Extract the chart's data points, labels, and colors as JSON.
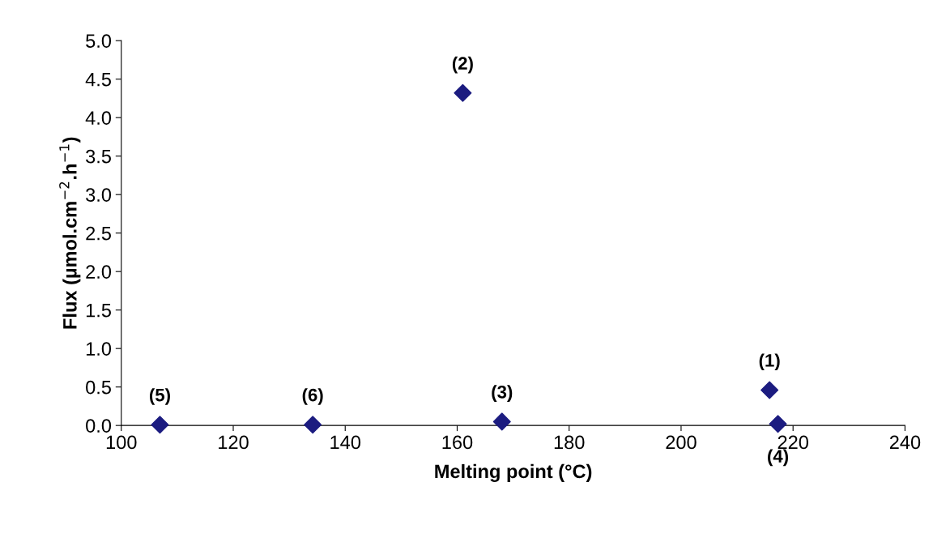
{
  "chart_data": {
    "type": "scatter",
    "xlabel": "Melting point (°C)",
    "ylabel": "Flux (µmol.cm$^{−2}$.h$^{−1}$)",
    "x": [
      215.8,
      161,
      168,
      217.3,
      106.9,
      134.2
    ],
    "values": [
      0.46,
      4.32,
      0.05,
      0.02,
      0.01,
      0.01
    ],
    "color": "#1c1c80",
    "marker": "diamond",
    "grid": false,
    "legend": false,
    "xlim": [
      100,
      240
    ],
    "xticks": [
      100,
      120,
      140,
      160,
      180,
      200,
      220,
      240
    ],
    "ylim": [
      0,
      5
    ],
    "yticks": [
      {
        "value": 0,
        "label": "0.0"
      },
      {
        "value": 0.5,
        "label": "0.5"
      },
      {
        "value": 1,
        "label": "1.0"
      },
      {
        "value": 1.5,
        "label": "1.5"
      },
      {
        "value": 2,
        "label": "2.0"
      },
      {
        "value": 2.5,
        "label": "2.5"
      },
      {
        "value": 3,
        "label": "3.0"
      },
      {
        "value": 3.5,
        "label": "3.5"
      },
      {
        "value": 4,
        "label": "4.0"
      },
      {
        "value": 4.5,
        "label": "4.5"
      },
      {
        "value": 5,
        "label": "5.0"
      }
    ],
    "annotations": [
      {
        "text": "(1)",
        "x": 215.8,
        "y": 0.46
      },
      {
        "text": "(2)",
        "x": 161,
        "y": 4.32
      },
      {
        "text": "(3)",
        "x": 168,
        "y": 0.05
      },
      {
        "text": "(4)",
        "x": 217.3,
        "y": 0.02
      },
      {
        "text": "(5)",
        "x": 106.9,
        "y": 0.01
      },
      {
        "text": "(6)",
        "x": 134.2,
        "y": 0.01
      }
    ]
  }
}
